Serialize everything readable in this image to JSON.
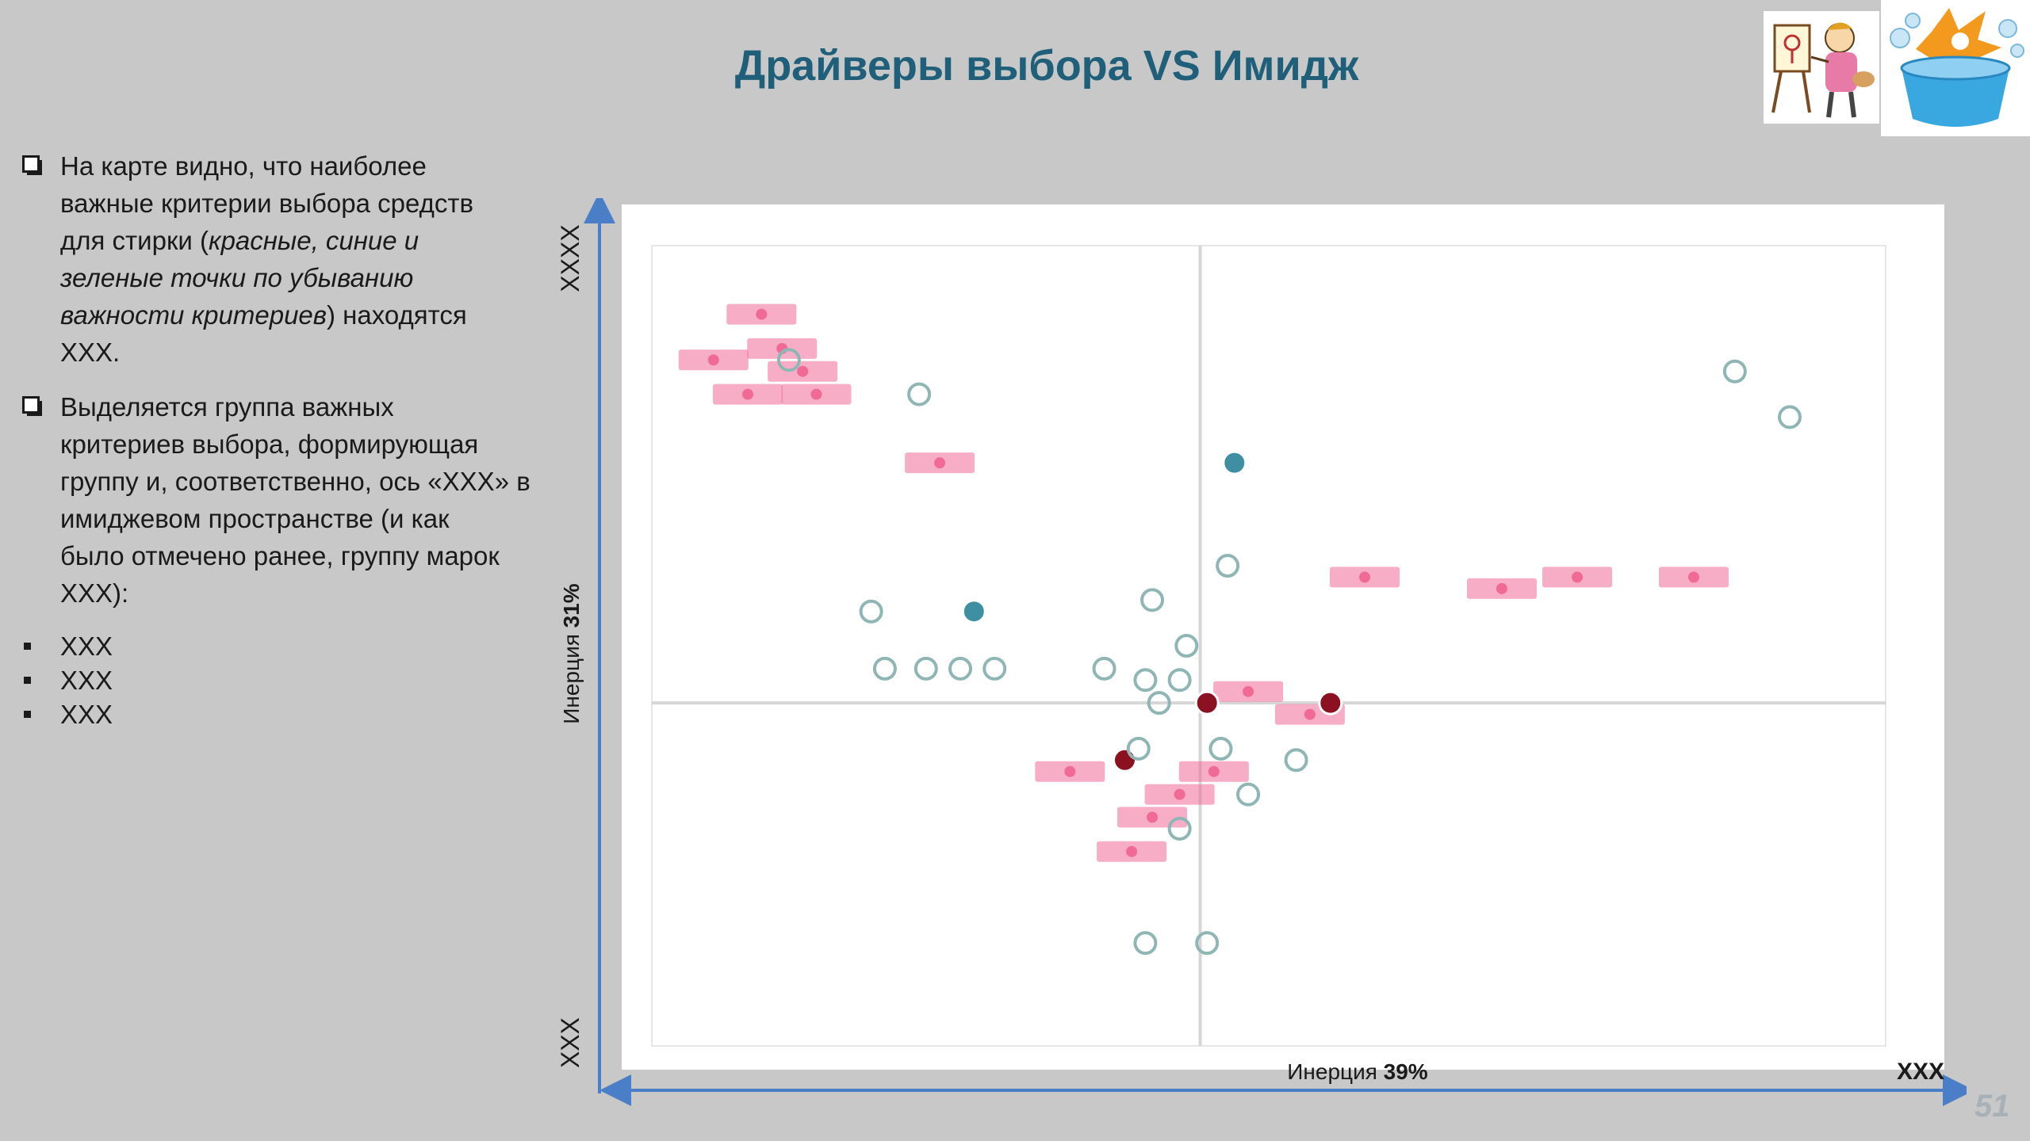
{
  "slide": {
    "title": "Драйверы выбора VS Имидж",
    "page_number": "51"
  },
  "bullets": [
    {
      "line1": "На карте видно, что наиболее",
      "line2": "важные критерии выбора средств",
      "line3a": "для стирки (",
      "line3b": "красные, синие и",
      "line4": "зеленые точки по убыванию",
      "line5a": "важности критериев",
      "line5b": ")  находятся",
      "line6": "XXX."
    },
    {
      "line1": "Выделяется группа важных",
      "line2": "критериев выбора, формирующая",
      "line3": "группу и, соответственно, ось «XXX» в",
      "line4": "имиджевом пространстве (и как",
      "line5": "было отмечено ранее, группу марок",
      "line6": "XXX):"
    }
  ],
  "sub_items": [
    "XXX",
    "XXX",
    "XXX"
  ],
  "axes": {
    "y_top_label": "XXXX",
    "y_bottom_label": "XXX",
    "y_inertia_text": "Инерция ",
    "y_inertia_value": "31%",
    "x_inertia_text": "Инерция ",
    "x_inertia_value": "39%",
    "x_right_label": "XXX"
  },
  "colors": {
    "title": "#1f5f7a",
    "axis_arrow": "#4a7fc8",
    "brand_pink": "#f06a96",
    "driver_red": "#8b1020",
    "driver_teal": "#3f8fa3",
    "outline_point": "#8fb6b4"
  },
  "chart_data": {
    "type": "scatter",
    "title": "",
    "xlim": [
      -0.8,
      1.0
    ],
    "ylim": [
      -0.3,
      0.4
    ],
    "grid": true,
    "series": [
      {
        "role": "brands",
        "color": "#f06a96",
        "points": [
          {
            "x": -0.64,
            "y": 0.34
          },
          {
            "x": -0.61,
            "y": 0.31
          },
          {
            "x": -0.71,
            "y": 0.3
          },
          {
            "x": -0.58,
            "y": 0.29
          },
          {
            "x": -0.66,
            "y": 0.27
          },
          {
            "x": -0.56,
            "y": 0.27
          },
          {
            "x": -0.38,
            "y": 0.21
          },
          {
            "x": 0.44,
            "y": 0.1
          },
          {
            "x": 0.55,
            "y": 0.11
          },
          {
            "x": 0.72,
            "y": 0.11
          },
          {
            "x": 0.24,
            "y": 0.11
          },
          {
            "x": 0.07,
            "y": 0.01
          },
          {
            "x": 0.16,
            "y": -0.01
          },
          {
            "x": -0.19,
            "y": -0.06
          },
          {
            "x": 0.02,
            "y": -0.06
          },
          {
            "x": -0.03,
            "y": -0.08
          },
          {
            "x": -0.07,
            "y": -0.1
          },
          {
            "x": -0.1,
            "y": -0.13
          }
        ]
      },
      {
        "role": "drivers-top",
        "color": "#8b1020",
        "points": [
          {
            "x": 0.01,
            "y": 0.0
          },
          {
            "x": 0.19,
            "y": 0.0
          },
          {
            "x": -0.11,
            "y": -0.05
          }
        ]
      },
      {
        "role": "drivers-mid",
        "color": "#3f8fa3",
        "points": [
          {
            "x": 0.05,
            "y": 0.21
          },
          {
            "x": -0.33,
            "y": 0.08
          }
        ]
      },
      {
        "role": "other-attributes",
        "color": "#8fb6b4",
        "points": [
          {
            "x": -0.6,
            "y": 0.3
          },
          {
            "x": -0.41,
            "y": 0.27
          },
          {
            "x": 0.78,
            "y": 0.29
          },
          {
            "x": 0.86,
            "y": 0.25
          },
          {
            "x": 0.04,
            "y": 0.12
          },
          {
            "x": -0.48,
            "y": 0.08
          },
          {
            "x": -0.07,
            "y": 0.09
          },
          {
            "x": -0.02,
            "y": 0.05
          },
          {
            "x": -0.46,
            "y": 0.03
          },
          {
            "x": -0.4,
            "y": 0.03
          },
          {
            "x": -0.35,
            "y": 0.03
          },
          {
            "x": -0.3,
            "y": 0.03
          },
          {
            "x": -0.14,
            "y": 0.03
          },
          {
            "x": -0.08,
            "y": 0.02
          },
          {
            "x": -0.03,
            "y": 0.02
          },
          {
            "x": -0.06,
            "y": 0.0
          },
          {
            "x": -0.09,
            "y": -0.04
          },
          {
            "x": 0.03,
            "y": -0.04
          },
          {
            "x": 0.14,
            "y": -0.05
          },
          {
            "x": -0.03,
            "y": -0.11
          },
          {
            "x": 0.07,
            "y": -0.08
          },
          {
            "x": -0.08,
            "y": -0.21
          },
          {
            "x": 0.01,
            "y": -0.21
          }
        ]
      }
    ]
  }
}
